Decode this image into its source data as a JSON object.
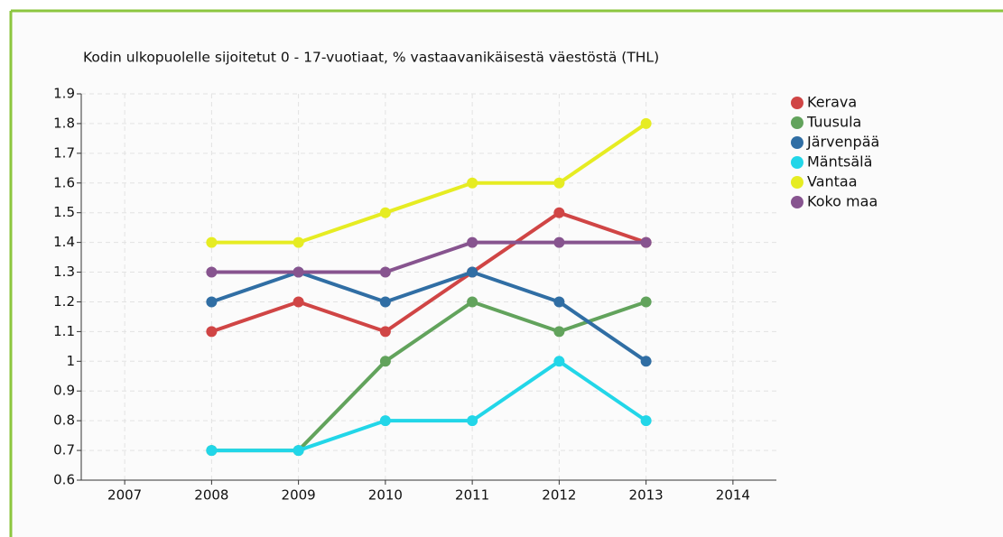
{
  "chart_data": {
    "type": "line",
    "title": "Kodin ulkopuolelle sijoitetut 0 - 17-vuotiaat, % vastaavanikäisestä väestöstä (THL)",
    "x": [
      2008,
      2009,
      2010,
      2011,
      2012,
      2013
    ],
    "series": [
      {
        "name": "Kerava",
        "color": "#d04545",
        "values": [
          1.1,
          1.2,
          1.1,
          1.3,
          1.5,
          1.4
        ]
      },
      {
        "name": "Tuusula",
        "color": "#62a35c",
        "values": [
          0.7,
          0.7,
          1.0,
          1.2,
          1.1,
          1.2
        ]
      },
      {
        "name": "Järvenpää",
        "color": "#306ea4",
        "values": [
          1.2,
          1.3,
          1.2,
          1.3,
          1.2,
          1.0
        ]
      },
      {
        "name": "Mäntsälä",
        "color": "#22d6e8",
        "values": [
          0.7,
          0.7,
          0.8,
          0.8,
          1.0,
          0.8
        ]
      },
      {
        "name": "Vantaa",
        "color": "#e6ec22",
        "values": [
          1.4,
          1.4,
          1.5,
          1.6,
          1.6,
          1.8
        ]
      },
      {
        "name": "Koko maa",
        "color": "#87548f",
        "values": [
          1.3,
          1.3,
          1.3,
          1.4,
          1.4,
          1.4
        ]
      }
    ],
    "xlim": [
      2006.5,
      2014.5
    ],
    "xticks": [
      2007,
      2008,
      2009,
      2010,
      2011,
      2012,
      2013,
      2014
    ],
    "ylim": [
      0.6,
      1.9
    ],
    "yticks": [
      0.6,
      0.7,
      0.8,
      0.9,
      1,
      1.1,
      1.2,
      1.3,
      1.4,
      1.5,
      1.6,
      1.7,
      1.8,
      1.9
    ],
    "grid": true,
    "legend": "right"
  }
}
